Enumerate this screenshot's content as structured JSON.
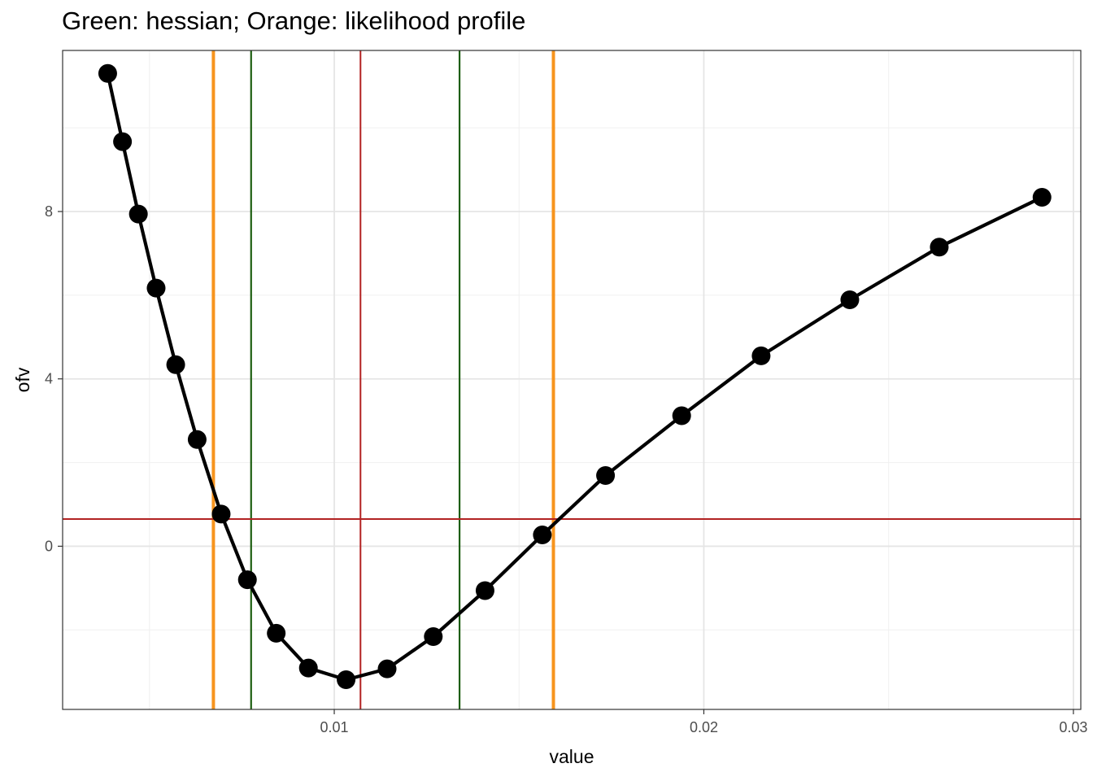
{
  "chart_data": {
    "type": "line",
    "title": "Green: hessian; Orange: likelihood profile",
    "xlabel": "value",
    "ylabel": "ofv",
    "xlim": [
      0.00265,
      0.0302
    ],
    "ylim": [
      -3.9,
      11.85
    ],
    "x_ticks": [
      {
        "value": 0.01,
        "label": "0.01"
      },
      {
        "value": 0.02,
        "label": "0.02"
      },
      {
        "value": 0.03,
        "label": "0.03"
      }
    ],
    "x_minor_ticks": [
      0.005,
      0.015,
      0.025
    ],
    "y_ticks": [
      {
        "value": 0,
        "label": "0"
      },
      {
        "value": 4,
        "label": "4"
      },
      {
        "value": 8,
        "label": "8"
      }
    ],
    "y_minor_ticks": [
      -2,
      2,
      6,
      10
    ],
    "grid": true,
    "series": [
      {
        "color": "#000000",
        "x": [
          0.00387,
          0.00427,
          0.0047,
          0.00518,
          0.00571,
          0.00629,
          0.00694,
          0.00765,
          0.00843,
          0.0093,
          0.01032,
          0.01143,
          0.01268,
          0.01408,
          0.01563,
          0.01734,
          0.0194,
          0.02155,
          0.02395,
          0.02637,
          0.02915
        ],
        "y": [
          11.3,
          9.67,
          7.94,
          6.17,
          4.34,
          2.55,
          0.77,
          -0.8,
          -2.08,
          -2.91,
          -3.19,
          -2.93,
          -2.16,
          -1.06,
          0.27,
          1.69,
          3.12,
          4.55,
          5.89,
          7.15,
          8.34
        ]
      }
    ],
    "reference_lines": [
      {
        "orientation": "vertical",
        "value": 0.00673,
        "color": "#f7941d",
        "width": 4
      },
      {
        "orientation": "vertical",
        "value": 0.01593,
        "color": "#f7941d",
        "width": 4
      },
      {
        "orientation": "vertical",
        "value": 0.00775,
        "color": "#1d5e10",
        "width": 2.2
      },
      {
        "orientation": "vertical",
        "value": 0.01339,
        "color": "#1d5e10",
        "width": 2.2
      },
      {
        "orientation": "vertical",
        "value": 0.01071,
        "color": "#b22222",
        "width": 2
      },
      {
        "orientation": "horizontal",
        "value": 0.65,
        "color": "#b22222",
        "width": 2
      }
    ]
  }
}
